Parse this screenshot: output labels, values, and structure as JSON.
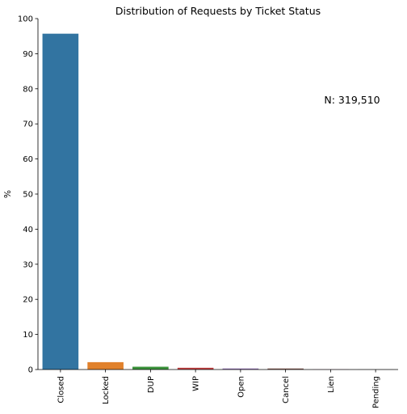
{
  "chart_data": {
    "type": "bar",
    "title": "Distribution of Requests by Ticket Status",
    "xlabel": "",
    "ylabel": "%",
    "categories": [
      "Closed",
      "Locked",
      "DUP",
      "WIP",
      "Open",
      "Cancel",
      "Lien",
      "Pending"
    ],
    "values": [
      95.7,
      2.1,
      0.8,
      0.5,
      0.3,
      0.3,
      0.05,
      0.02
    ],
    "colors": [
      "#3274a1",
      "#e1812c",
      "#3a923a",
      "#c03d3e",
      "#9372b2",
      "#845b53",
      "#d684bd",
      "#7f7f7f"
    ],
    "ylim": [
      0,
      100
    ],
    "yticks": [
      0,
      10,
      20,
      30,
      40,
      50,
      60,
      70,
      80,
      90,
      100
    ],
    "grid": false,
    "annotation": "N: 319,510"
  }
}
